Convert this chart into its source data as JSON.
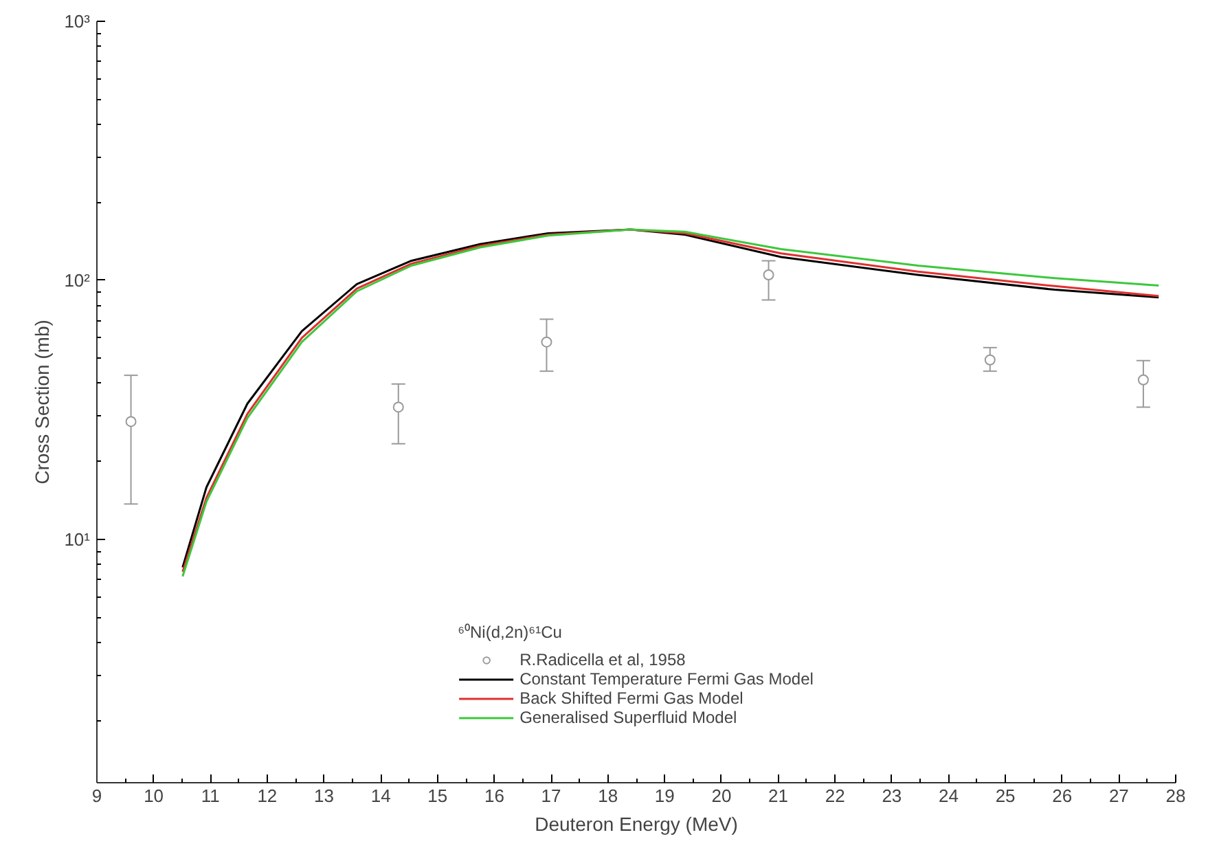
{
  "chart_data": {
    "type": "line",
    "xlabel": "Deuteron Energy (MeV)",
    "ylabel": "Cross Section (mb)",
    "legend_title": "⁶⁰Ni(d,2n)⁶¹Cu",
    "log": "y",
    "grid": false,
    "legend": "bottom",
    "xlim": [
      9,
      28
    ],
    "ylim": [
      1.15,
      1000
    ],
    "xticks": [
      9,
      10,
      11,
      12,
      13,
      14,
      15,
      16,
      17,
      18,
      19,
      20,
      21,
      22,
      23,
      24,
      25,
      26,
      27,
      28
    ],
    "yticks": [
      {
        "value": 10,
        "label": "10¹"
      },
      {
        "value": 100,
        "label": "10²"
      },
      {
        "value": 1000,
        "label": "10³"
      }
    ],
    "series": [
      {
        "name": "R.Radicella et al, 1958",
        "type": "scatter",
        "marker": "circle",
        "color": "#9a9a9a",
        "x": [
          9.6,
          14.31,
          16.92,
          20.83,
          24.73,
          27.43
        ],
        "values": [
          28.5,
          32.4,
          57.8,
          105,
          49.3,
          41.3
        ],
        "errors": [
          [
            13.7,
            43
          ],
          [
            23.4,
            39.8
          ],
          [
            44.6,
            70.8
          ],
          [
            84,
            119
          ],
          [
            44.6,
            55
          ],
          [
            32.4,
            49
          ]
        ]
      },
      {
        "name": "Constant Temperature Fermi Gas Model",
        "color": "#000000",
        "x": [
          10.51,
          10.93,
          11.65,
          12.61,
          13.58,
          14.54,
          15.75,
          16.95,
          18.4,
          19.36,
          21.05,
          23.46,
          25.87,
          27.7
        ],
        "values": [
          7.8,
          15.9,
          33.4,
          63.7,
          96.8,
          119,
          138,
          152,
          157,
          150,
          123,
          105,
          92,
          86
        ]
      },
      {
        "name": "Back Shifted Fermi Gas Model",
        "color": "#e03030",
        "x": [
          10.51,
          10.93,
          11.65,
          12.61,
          13.58,
          14.54,
          15.75,
          16.95,
          18.4,
          19.36,
          21.05,
          23.46,
          25.87,
          27.7
        ],
        "values": [
          7.5,
          14.5,
          30.5,
          60,
          93,
          116,
          136,
          150,
          157,
          152,
          127,
          108,
          95,
          87
        ]
      },
      {
        "name": "Generalised Superfluid Model",
        "color": "#3cc83c",
        "x": [
          10.51,
          10.93,
          11.65,
          12.61,
          13.58,
          14.54,
          15.75,
          16.95,
          18.4,
          19.36,
          21.05,
          23.46,
          25.87,
          27.7
        ],
        "values": [
          7.2,
          14,
          29.4,
          57.8,
          90.8,
          114,
          134,
          149,
          157,
          154,
          132,
          114,
          102,
          95.5
        ]
      }
    ]
  }
}
